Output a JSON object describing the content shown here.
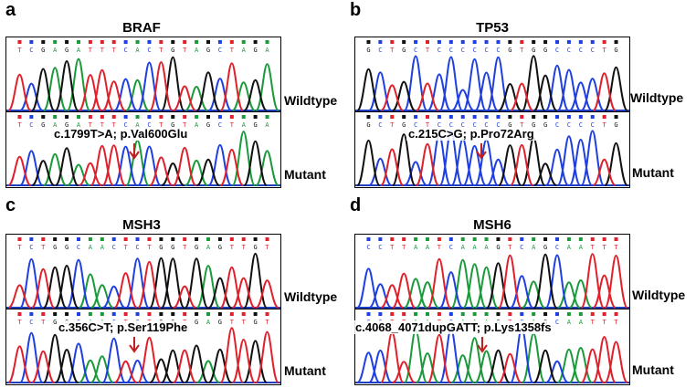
{
  "panels": [
    {
      "letter": "a",
      "gene": "BRAF",
      "top_seq": "TCGAGATTTCACTGTAGCTAGA",
      "bottom_seq": "TCGAGATTTCACTGTAGCTAGA",
      "mutation": "c.1799T>A; p.Val600Glu",
      "wildtype_label": "Wildtype",
      "mutant_label": "Mutant"
    },
    {
      "letter": "b",
      "gene": "TP53",
      "top_seq": "GCTGCTCCCCCCGTGGCCCCTG",
      "bottom_seq": "GCTGCTCCCCCCGTGGCCCCTG",
      "mutation": "c.215C>G; p.Pro72Arg",
      "wildtype_label": "Wildtype",
      "mutant_label": "Mutant"
    },
    {
      "letter": "c",
      "gene": "MSH3",
      "top_seq": "TCTGGCAACTCTGGTGAGTTGT",
      "bottom_seq": "TCTGGCAACTCTGGTGAGTTGT",
      "mutation": "c.356C>T; p.Ser119Phe",
      "wildtype_label": "Wildtype",
      "mutant_label": "Mutant"
    },
    {
      "letter": "d",
      "gene": "MSH6",
      "top_seq": "CCTTAATCAAAGTCAGCAATTT",
      "bottom_seq": "CCTTAATCAAAGTCAGCAATTT",
      "mutation": "c.4068_4071dupGATT; p.Lys1358fs",
      "wildtype_label": "Wildtype",
      "mutant_label": "Mutant"
    }
  ],
  "colors": {
    "A": "#1a9a3a",
    "C": "#1f3fe0",
    "G": "#111111",
    "T": "#e0202a",
    "arrow": "#c0201f",
    "baseline": "#1f3fbf"
  }
}
